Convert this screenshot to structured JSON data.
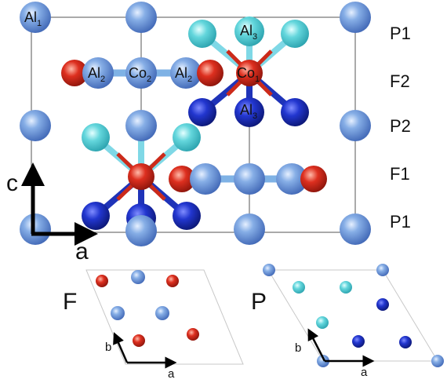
{
  "colors": {
    "al_light_blue": "#6f9bd8",
    "al_cyan": "#5ed4da",
    "al_dark_blue": "#1d2fbf",
    "co_red": "#d42a1c",
    "bond_blue": "#7fb2e5",
    "bond_red": "#cc2a1a",
    "bond_cyan": "#7fd8e6",
    "bond_navy": "#1f33b8",
    "cell_outline": "#555555"
  },
  "atom_labels": {
    "al1": {
      "base": "Al",
      "sub": "1"
    },
    "al2_left": {
      "base": "Al",
      "sub": "2"
    },
    "co2": {
      "base": "Co",
      "sub": "2"
    },
    "al2_right": {
      "base": "Al",
      "sub": "2"
    },
    "al3_top": {
      "base": "Al",
      "sub": "3"
    },
    "co1": {
      "base": "Co",
      "sub": "1"
    },
    "al3_bottom": {
      "base": "Al",
      "sub": "3"
    }
  },
  "layer_labels": [
    "P1",
    "F2",
    "P2",
    "F1",
    "P1"
  ],
  "axes_main": {
    "vertical": "c",
    "horizontal": "a"
  },
  "panel_f": {
    "title": "F",
    "axis_b": "b",
    "axis_a": "a"
  },
  "panel_p": {
    "title": "P",
    "axis_b": "b",
    "axis_a": "a"
  }
}
